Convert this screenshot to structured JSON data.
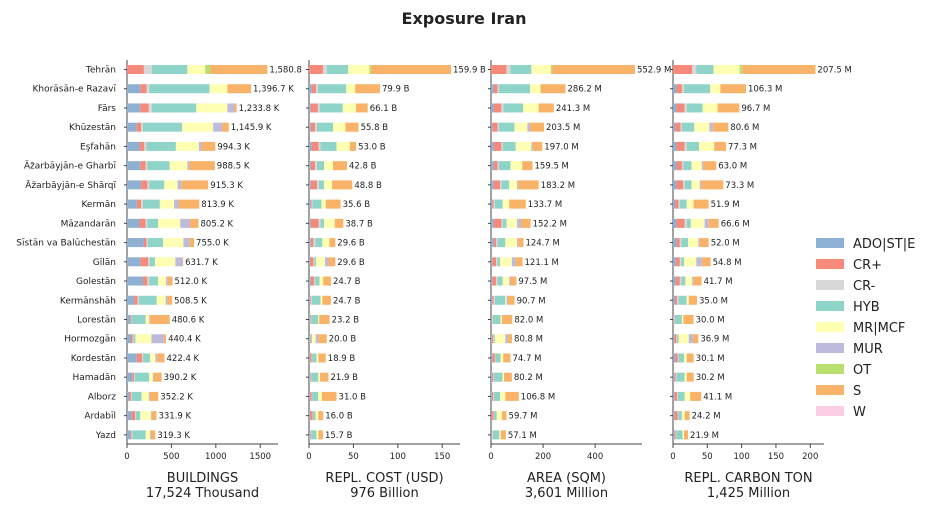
{
  "chart_data": {
    "type": "bar",
    "orientation": "horizontal",
    "stacked": true,
    "title": "Exposure Iran",
    "categories": [
      "Tehrān",
      "Khorāsān-e Razavī",
      "Fārs",
      "Khūzestān",
      "Eşfahān",
      "Āz̄arbāyjān-e Gharbī",
      "Āz̄arbāyjān-e Shārqī",
      "Kermān",
      "Māzandarān",
      "Sīstān va Balūchestān",
      "Gīlān",
      "Golestān",
      "Kermānshāh",
      "Lorestān",
      "Hormozgān",
      "Kordestān",
      "Hamadān",
      "Alborz",
      "Ardabīl",
      "Yazd"
    ],
    "legend": {
      "position": "right",
      "items": [
        {
          "name": "ADO|ST|E",
          "color": "#8db0d3"
        },
        {
          "name": "CR+",
          "color": "#f58a7b"
        },
        {
          "name": "CR-",
          "color": "#d8d8d8"
        },
        {
          "name": "HYB",
          "color": "#8fd4c8"
        },
        {
          "name": "MR|MCF",
          "color": "#ffffb3"
        },
        {
          "name": "MUR",
          "color": "#bebadb"
        },
        {
          "name": "OT",
          "color": "#b9df6e"
        },
        {
          "name": "S",
          "color": "#f9b368"
        },
        {
          "name": "W",
          "color": "#fbcde4"
        }
      ]
    },
    "panels": [
      {
        "xlabel": "BUILDINGS",
        "subtitle": "17,524 Thousand",
        "xlim": [
          0,
          1700
        ],
        "xticks": [
          0,
          500,
          1000,
          1500
        ],
        "tick_labels": [
          "0",
          "500",
          "1000",
          "1500"
        ],
        "totals": [
          1580.8,
          1396.7,
          1233.8,
          1145.9,
          994.3,
          988.5,
          915.3,
          813.9,
          805.2,
          755.0,
          631.7,
          512.0,
          508.5,
          480.6,
          440.4,
          422.4,
          390.2,
          352.2,
          331.9,
          319.3
        ],
        "labels": [
          "1,580.8",
          "1,396.7 K",
          "1,233.8 K",
          "1,145.9 K",
          "994.3 K",
          "988.5 K",
          "915.3 K",
          "813.9 K",
          "805.2 K",
          "755.0 K",
          "631.7 K",
          "512.0 K",
          "508.5 K",
          "480.6 K",
          "440.4 K",
          "422.4 K",
          "390.2 K",
          "352.2 K",
          "331.9 K",
          "319.3 K"
        ],
        "segments": [
          [
            0,
            190,
            90,
            400,
            200,
            0,
            60,
            640,
            0
          ],
          [
            150,
            70,
            30,
            680,
            200,
            0,
            0,
            267,
            0
          ],
          [
            150,
            95,
            35,
            500,
            350,
            80,
            0,
            24,
            0
          ],
          [
            110,
            50,
            20,
            440,
            350,
            100,
            0,
            76,
            0
          ],
          [
            140,
            55,
            25,
            330,
            260,
            30,
            0,
            154,
            0
          ],
          [
            150,
            60,
            20,
            250,
            200,
            20,
            0,
            289,
            0
          ],
          [
            160,
            70,
            20,
            170,
            150,
            40,
            0,
            305,
            0
          ],
          [
            110,
            50,
            20,
            190,
            160,
            50,
            0,
            234,
            0
          ],
          [
            140,
            70,
            20,
            120,
            250,
            110,
            0,
            95,
            0
          ],
          [
            190,
            30,
            15,
            170,
            230,
            70,
            0,
            50,
            0
          ],
          [
            150,
            90,
            15,
            60,
            230,
            80,
            0,
            7,
            0
          ],
          [
            180,
            50,
            20,
            100,
            90,
            20,
            0,
            52,
            0
          ],
          [
            80,
            40,
            15,
            200,
            100,
            20,
            0,
            54,
            0
          ],
          [
            35,
            10,
            5,
            160,
            40,
            10,
            0,
            221,
            0
          ],
          [
            45,
            20,
            10,
            20,
            180,
            140,
            0,
            25,
            0
          ],
          [
            110,
            60,
            10,
            80,
            60,
            20,
            0,
            82,
            0
          ],
          [
            60,
            20,
            10,
            160,
            40,
            10,
            0,
            90,
            0
          ],
          [
            25,
            20,
            10,
            110,
            80,
            10,
            0,
            97,
            0
          ],
          [
            50,
            40,
            10,
            50,
            120,
            10,
            0,
            52,
            0
          ],
          [
            40,
            10,
            10,
            150,
            50,
            10,
            0,
            49,
            0
          ]
        ]
      },
      {
        "xlabel": "REPL. COST (USD)",
        "subtitle": "976 Billion",
        "xlim": [
          0,
          170
        ],
        "xticks": [
          0,
          50,
          100,
          150
        ],
        "tick_labels": [
          "0",
          "50",
          "100",
          "150"
        ],
        "totals": [
          159.9,
          79.9,
          66.1,
          55.8,
          53.0,
          42.8,
          48.8,
          35.6,
          38.7,
          29.6,
          29.6,
          24.7,
          24.7,
          23.2,
          20.0,
          18.9,
          21.9,
          31.0,
          16.0,
          15.7
        ],
        "labels": [
          "159.9 B",
          "79.9 B",
          "66.1 B",
          "55.8 B",
          "53.0 B",
          "42.8 B",
          "48.8 B",
          "35.6 B",
          "38.7 B",
          "29.6 B",
          "29.6 B",
          "24.7 B",
          "24.7 B",
          "23.2 B",
          "20.0 B",
          "18.9 B",
          "21.9 B",
          "31.0 B",
          "16.0 B",
          "15.7 B"
        ],
        "segments": [
          [
            0,
            16,
            4,
            24,
            24,
            0,
            2,
            89.9,
            0
          ],
          [
            3,
            5,
            2,
            32,
            10,
            0,
            0,
            27.9,
            0
          ],
          [
            2,
            8,
            2,
            26,
            15,
            0,
            0,
            13.1,
            0
          ],
          [
            2,
            5,
            2,
            18,
            14,
            0,
            0,
            14.8,
            0
          ],
          [
            3,
            8,
            2,
            18,
            15,
            0,
            0,
            7.0,
            0
          ],
          [
            2,
            5,
            2,
            8,
            10,
            0,
            0,
            15.8,
            0
          ],
          [
            2,
            7,
            2,
            6,
            9,
            0,
            0,
            22.8,
            0
          ],
          [
            2,
            1,
            1,
            10,
            5,
            0,
            0,
            16.6,
            0
          ],
          [
            2,
            9,
            2,
            4,
            12,
            0,
            0,
            9.7,
            0
          ],
          [
            2,
            3,
            2,
            8,
            8,
            0,
            0,
            6.6,
            0
          ],
          [
            1,
            4,
            1,
            2,
            10,
            4,
            0,
            7.6,
            0
          ],
          [
            2,
            4,
            1,
            5,
            4,
            0,
            0,
            8.7,
            0
          ],
          [
            1,
            1,
            1,
            10,
            2,
            0,
            0,
            9.7,
            0
          ],
          [
            1,
            1,
            0.5,
            8,
            1,
            0,
            0,
            11.7,
            0
          ],
          [
            1,
            1,
            0.5,
            1,
            4,
            3,
            0,
            9.5,
            0
          ],
          [
            1,
            2,
            0.5,
            5,
            2,
            0,
            0,
            8.4,
            0
          ],
          [
            1,
            1,
            0.5,
            8,
            2,
            0,
            0,
            9.4,
            0
          ],
          [
            1,
            2,
            0.5,
            7,
            4,
            0,
            0,
            16.5,
            0
          ],
          [
            1,
            3,
            0.5,
            3,
            3,
            0,
            0,
            5.5,
            0
          ],
          [
            1,
            1,
            0.5,
            6,
            2,
            0,
            0,
            5.2,
            0
          ]
        ]
      },
      {
        "xlabel": "AREA (SQM)",
        "subtitle": "3,601 Million",
        "xlim": [
          0,
          580
        ],
        "xticks": [
          0,
          200,
          400
        ],
        "tick_labels": [
          "0",
          "200",
          "400"
        ],
        "totals": [
          552.9,
          286.2,
          241.3,
          203.5,
          197.0,
          159.5,
          183.2,
          133.7,
          152.2,
          124.7,
          121.1,
          97.5,
          90.7,
          82.0,
          80.8,
          74.7,
          80.2,
          106.8,
          59.7,
          57.1
        ],
        "labels": [
          "552.9 M",
          "286.2 M",
          "241.3 M",
          "203.5 M",
          "197.0 M",
          "159.5 M",
          "183.2 M",
          "133.7 M",
          "152.2 M",
          "124.7 M",
          "121.1 M",
          "97.5 M",
          "90.7 M",
          "82.0 M",
          "80.8 M",
          "74.7 M",
          "80.2 M",
          "106.8 M",
          "59.7 M",
          "57.1 M"
        ],
        "segments": [
          [
            0,
            60,
            15,
            80,
            75,
            0,
            5,
            317.9,
            0
          ],
          [
            10,
            15,
            5,
            120,
            40,
            0,
            0,
            96.2,
            0
          ],
          [
            10,
            30,
            8,
            75,
            60,
            0,
            0,
            58.3,
            0
          ],
          [
            5,
            20,
            5,
            60,
            50,
            10,
            0,
            53.5,
            0
          ],
          [
            10,
            30,
            5,
            50,
            60,
            5,
            0,
            37.0,
            0
          ],
          [
            10,
            15,
            5,
            45,
            45,
            0,
            0,
            39.5,
            0
          ],
          [
            10,
            25,
            5,
            30,
            30,
            5,
            0,
            78.2,
            0
          ],
          [
            5,
            5,
            5,
            30,
            25,
            0,
            0,
            63.7,
            0
          ],
          [
            10,
            30,
            5,
            15,
            40,
            15,
            0,
            37.2,
            0
          ],
          [
            10,
            10,
            5,
            30,
            45,
            5,
            0,
            19.7,
            0
          ],
          [
            5,
            15,
            5,
            10,
            45,
            15,
            0,
            26.1,
            0
          ],
          [
            5,
            15,
            5,
            20,
            25,
            5,
            0,
            22.5,
            0
          ],
          [
            5,
            5,
            5,
            40,
            5,
            5,
            0,
            25.7,
            0
          ],
          [
            2,
            3,
            2,
            30,
            5,
            0,
            0,
            40.0,
            0
          ],
          [
            3,
            5,
            2,
            5,
            40,
            10,
            0,
            15.8,
            0
          ],
          [
            5,
            10,
            2,
            20,
            10,
            0,
            0,
            27.7,
            0
          ],
          [
            3,
            5,
            2,
            35,
            5,
            0,
            0,
            30.2,
            0
          ],
          [
            3,
            5,
            2,
            25,
            20,
            0,
            0,
            51.8,
            0
          ],
          [
            2,
            8,
            2,
            10,
            20,
            0,
            0,
            17.7,
            0
          ],
          [
            2,
            3,
            2,
            25,
            5,
            0,
            0,
            20.1,
            0
          ]
        ]
      },
      {
        "xlabel": "REPL. CARBON TON",
        "subtitle": "1,425 Million",
        "xlim": [
          0,
          220
        ],
        "xticks": [
          0,
          50,
          100,
          150,
          200
        ],
        "tick_labels": [
          "0",
          "50",
          "100",
          "150",
          "200"
        ],
        "totals": [
          207.5,
          106.3,
          96.7,
          80.6,
          77.3,
          63.0,
          73.3,
          51.9,
          66.6,
          52.0,
          54.8,
          41.7,
          35.0,
          30.0,
          36.9,
          30.1,
          30.2,
          41.1,
          24.2,
          21.9
        ],
        "labels": [
          "207.5 M",
          "106.3 M",
          "96.7 M",
          "80.6 M",
          "77.3 M",
          "63.0 M",
          "73.3 M",
          "51.9 M",
          "66.6 M",
          "52.0 M",
          "54.8 M",
          "41.7 M",
          "35.0 M",
          "30.0 M",
          "36.9 M",
          "30.1 M",
          "30.2 M",
          "41.1 M",
          "24.2 M",
          "21.9 M"
        ],
        "segments": [
          [
            0,
            28,
            6,
            25,
            38,
            0,
            4,
            106.5,
            0
          ],
          [
            5,
            8,
            3,
            38,
            15,
            0,
            0,
            37.3,
            0
          ],
          [
            5,
            12,
            3,
            23,
            22,
            0,
            0,
            31.7,
            0
          ],
          [
            3,
            8,
            2,
            18,
            22,
            5,
            0,
            22.6,
            0
          ],
          [
            5,
            12,
            3,
            18,
            22,
            0,
            0,
            17.3,
            0
          ],
          [
            5,
            8,
            2,
            12,
            15,
            2,
            0,
            19.0,
            0
          ],
          [
            5,
            10,
            2,
            10,
            12,
            2,
            0,
            32.3,
            0
          ],
          [
            3,
            5,
            2,
            10,
            10,
            0,
            0,
            21.9,
            0
          ],
          [
            5,
            12,
            3,
            6,
            20,
            6,
            0,
            14.6,
            0
          ],
          [
            5,
            5,
            2,
            10,
            15,
            2,
            0,
            13.0,
            0
          ],
          [
            4,
            6,
            2,
            4,
            18,
            8,
            0,
            12.8,
            0
          ],
          [
            4,
            6,
            2,
            6,
            10,
            2,
            0,
            11.7,
            0
          ],
          [
            3,
            3,
            2,
            12,
            3,
            0,
            0,
            12.0,
            0
          ],
          [
            1,
            1,
            1,
            10,
            2,
            0,
            0,
            15.0,
            0
          ],
          [
            2,
            3,
            1,
            2,
            15,
            6,
            0,
            7.9,
            0
          ],
          [
            3,
            4,
            1,
            8,
            4,
            0,
            0,
            10.1,
            0
          ],
          [
            2,
            2,
            1,
            12,
            3,
            0,
            0,
            10.2,
            0
          ],
          [
            2,
            4,
            1,
            10,
            8,
            0,
            0,
            16.1,
            0
          ],
          [
            2,
            5,
            1,
            5,
            4,
            0,
            0,
            7.2,
            0
          ],
          [
            2,
            2,
            1,
            9,
            2,
            0,
            0,
            5.9,
            0
          ]
        ]
      }
    ]
  }
}
